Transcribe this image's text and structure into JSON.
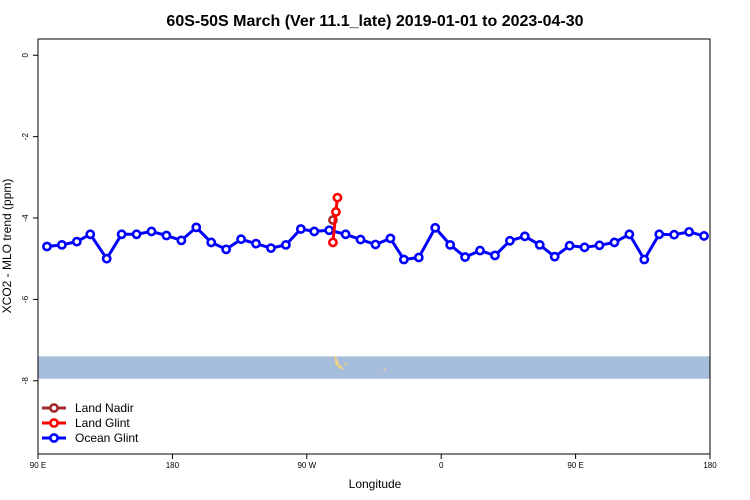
{
  "chart_data": {
    "type": "line",
    "title": "60S-50S March (Ver 11.1_late)   2019-01-01 to 2023-04-30",
    "xlabel": "Longitude",
    "ylabel": "XCO2 - MLO trend (ppm)",
    "xlim": [
      90,
      540
    ],
    "ylim": [
      -9.8,
      0.4
    ],
    "x_ticks": [
      {
        "value": 90,
        "label": "90 E"
      },
      {
        "value": 180,
        "label": "180"
      },
      {
        "value": 270,
        "label": "90 W"
      },
      {
        "value": 360,
        "label": "0"
      },
      {
        "value": 450,
        "label": "90 E"
      },
      {
        "value": 540,
        "label": "180"
      }
    ],
    "y_ticks": [
      {
        "value": 0,
        "label": "0"
      },
      {
        "value": -2,
        "label": "-2"
      },
      {
        "value": -4,
        "label": "-4"
      },
      {
        "value": -6,
        "label": "-6"
      },
      {
        "value": -8,
        "label": "-8"
      }
    ],
    "legend_position": "bottom-left",
    "series": [
      {
        "name": "Land Nadir",
        "color": "#a52a2a",
        "x": [
          287.5
        ],
        "y": [
          -4.05
        ]
      },
      {
        "name": "Land Glint",
        "color": "#ff0000",
        "x": [
          287.5,
          289.5,
          290.5
        ],
        "y": [
          -4.6,
          -3.85,
          -3.5
        ]
      },
      {
        "name": "Ocean Glint",
        "color": "#0000ff",
        "x": [
          96,
          106,
          116,
          125,
          136,
          146,
          156,
          166,
          176,
          186,
          196,
          206,
          216,
          226,
          236,
          246,
          256,
          266,
          275,
          285,
          296,
          306,
          316,
          326,
          335,
          345,
          356,
          366,
          376,
          386,
          396,
          406,
          416,
          426,
          436,
          446,
          456,
          466,
          476,
          486,
          496,
          506,
          516,
          526,
          536
        ],
        "y": [
          -4.7,
          -4.66,
          -4.58,
          -4.4,
          -5.0,
          -4.4,
          -4.4,
          -4.33,
          -4.43,
          -4.55,
          -4.23,
          -4.6,
          -4.77,
          -4.52,
          -4.63,
          -4.74,
          -4.66,
          -4.27,
          -4.33,
          -4.3,
          -4.4,
          -4.53,
          -4.65,
          -4.5,
          -5.02,
          -4.97,
          -4.24,
          -4.66,
          -4.96,
          -4.8,
          -4.92,
          -4.56,
          -4.45,
          -4.66,
          -4.95,
          -4.68,
          -4.72,
          -4.67,
          -4.6,
          -4.4,
          -5.02,
          -4.4,
          -4.41,
          -4.34,
          -4.44
        ]
      }
    ],
    "map_band": {
      "y_top": -7.4,
      "y_bottom": -7.95,
      "color": "#a6bddb",
      "land_color": "#f4d27a"
    }
  }
}
